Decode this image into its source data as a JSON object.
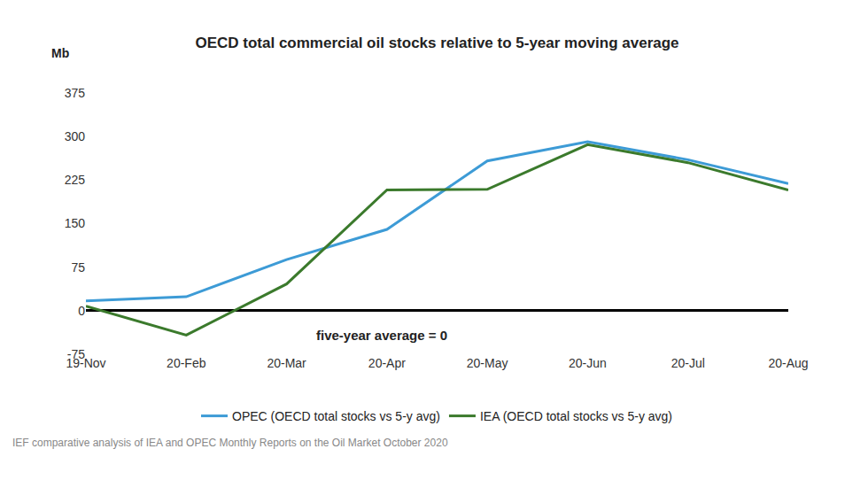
{
  "chart_data": {
    "type": "line",
    "title": "OECD total commercial oil stocks relative to 5-year moving average",
    "y_label": "Mb",
    "annotation": "five-year average = 0",
    "source": "IEF comparative analysis of IEA and OPEC Monthly Reports on the Oil Market October 2020",
    "categories": [
      "19-Nov",
      "20-Feb",
      "20-Mar",
      "20-Apr",
      "20-May",
      "20-Jun",
      "20-Jul",
      "20-Aug"
    ],
    "series": [
      {
        "name": "OPEC (OECD total stocks vs 5-y avg)",
        "color": "#3d9bd6",
        "values": [
          17,
          24,
          88,
          140,
          258,
          291,
          260,
          219
        ]
      },
      {
        "name": "IEA (OECD total stocks vs 5-y avg)",
        "color": "#3b7a2c",
        "values": [
          8,
          -42,
          46,
          208,
          209,
          286,
          255,
          208
        ]
      }
    ],
    "ylim": [
      -75,
      375
    ],
    "yticks": [
      -75,
      0,
      75,
      150,
      225,
      300,
      375
    ],
    "grid": false,
    "legend": "bottom"
  }
}
